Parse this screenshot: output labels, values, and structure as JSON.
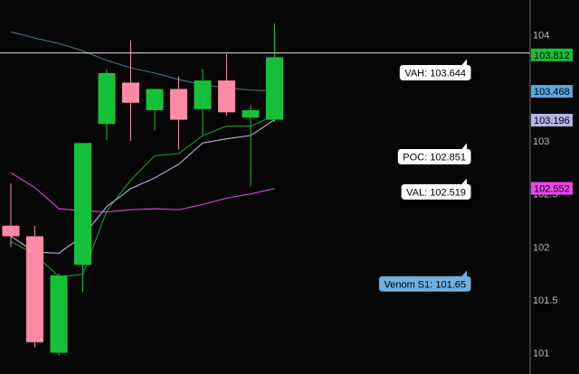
{
  "chart_data": {
    "type": "candlestick",
    "y_axis": {
      "ticks": [
        {
          "value": 104,
          "label": "104"
        },
        {
          "value": 103.5,
          "label": ""
        },
        {
          "value": 103,
          "label": "103"
        },
        {
          "value": 102.5,
          "label": "102.5"
        },
        {
          "value": 102,
          "label": "102"
        },
        {
          "value": 101.5,
          "label": "101.5"
        },
        {
          "value": 101,
          "label": "101"
        }
      ],
      "ylim": [
        100.8,
        104.33
      ],
      "position": "right"
    },
    "candles": [
      {
        "open": 102.2,
        "high": 102.6,
        "low": 102.0,
        "close": 102.1,
        "color": "#ff8aa5"
      },
      {
        "open": 102.1,
        "high": 102.2,
        "low": 101.05,
        "close": 101.1,
        "color": "#ff8aa5"
      },
      {
        "open": 101.0,
        "high": 101.75,
        "low": 100.97,
        "close": 101.73,
        "color": "#16c13a"
      },
      {
        "open": 101.83,
        "high": 102.98,
        "low": 101.57,
        "close": 102.98,
        "color": "#16c13a"
      },
      {
        "open": 103.16,
        "high": 103.68,
        "low": 103.01,
        "close": 103.64,
        "color": "#16c13a"
      },
      {
        "open": 103.55,
        "high": 103.95,
        "low": 103.0,
        "close": 103.36,
        "color": "#ff8aa5"
      },
      {
        "open": 103.29,
        "high": 103.49,
        "low": 103.1,
        "close": 103.49,
        "color": "#16c13a"
      },
      {
        "open": 103.49,
        "high": 103.61,
        "low": 102.92,
        "close": 103.2,
        "color": "#ff8aa5"
      },
      {
        "open": 103.3,
        "high": 103.68,
        "low": 103.06,
        "close": 103.57,
        "color": "#16c13a"
      },
      {
        "open": 103.57,
        "high": 103.82,
        "low": 103.24,
        "close": 103.27,
        "color": "#ff8aa5"
      },
      {
        "open": 103.22,
        "high": 103.34,
        "low": 102.57,
        "close": 103.29,
        "color": "#16c13a"
      },
      {
        "open": 103.2,
        "high": 104.11,
        "low": 103.18,
        "close": 103.79,
        "color": "#16c13a"
      }
    ],
    "series": [
      {
        "color": "#1f8c2b",
        "values": [
          102.05,
          101.93,
          101.72,
          101.74,
          102.34,
          102.63,
          102.86,
          102.88,
          103.05,
          103.14,
          103.14,
          103.24
        ]
      },
      {
        "color": "#a9a9d6",
        "values": [
          102.1,
          101.95,
          101.94,
          102.1,
          102.38,
          102.55,
          102.65,
          102.78,
          102.98,
          103.02,
          103.05,
          103.2
        ]
      },
      {
        "color": "#cc44c8",
        "values": [
          102.7,
          102.56,
          102.36,
          102.34,
          102.33,
          102.35,
          102.36,
          102.35,
          102.4,
          102.46,
          102.5,
          102.55
        ]
      },
      {
        "color": "#3a6e80",
        "values": [
          104.03,
          103.97,
          103.92,
          103.85,
          103.76,
          103.69,
          103.64,
          103.58,
          103.53,
          103.5,
          103.48,
          103.47
        ]
      }
    ],
    "horizontal_line": {
      "value": 103.83,
      "color": "#e6e6e6"
    },
    "price_tags": [
      {
        "value": 103.812,
        "label": "103.812",
        "bg": "#16c13a",
        "fg": "#000000"
      },
      {
        "value": 103.468,
        "label": "103.468",
        "bg": "#5aa7e1",
        "fg": "#000000"
      },
      {
        "value": 103.196,
        "label": "103.196",
        "bg": "#b3b3e6",
        "fg": "#000000"
      },
      {
        "value": 102.552,
        "label": "102.552",
        "bg": "#ee44ee",
        "fg": "#000000"
      }
    ],
    "callouts": [
      {
        "label": "VAH: 103.644",
        "value": 103.644,
        "bg": "#ffffff",
        "fg": "#000000"
      },
      {
        "label": "POC: 102.851",
        "value": 102.851,
        "bg": "#ffffff",
        "fg": "#000000"
      },
      {
        "label": "VAL: 102.519",
        "value": 102.519,
        "bg": "#ffffff",
        "fg": "#000000"
      },
      {
        "label": "Venom S1: 101.65",
        "value": 101.65,
        "bg": "#6fb0de",
        "fg": "#000000"
      }
    ],
    "colors": {
      "background": "#060606",
      "up": "#16c13a",
      "down": "#ff8aa5",
      "axis_line": "#6e6e6e"
    }
  }
}
